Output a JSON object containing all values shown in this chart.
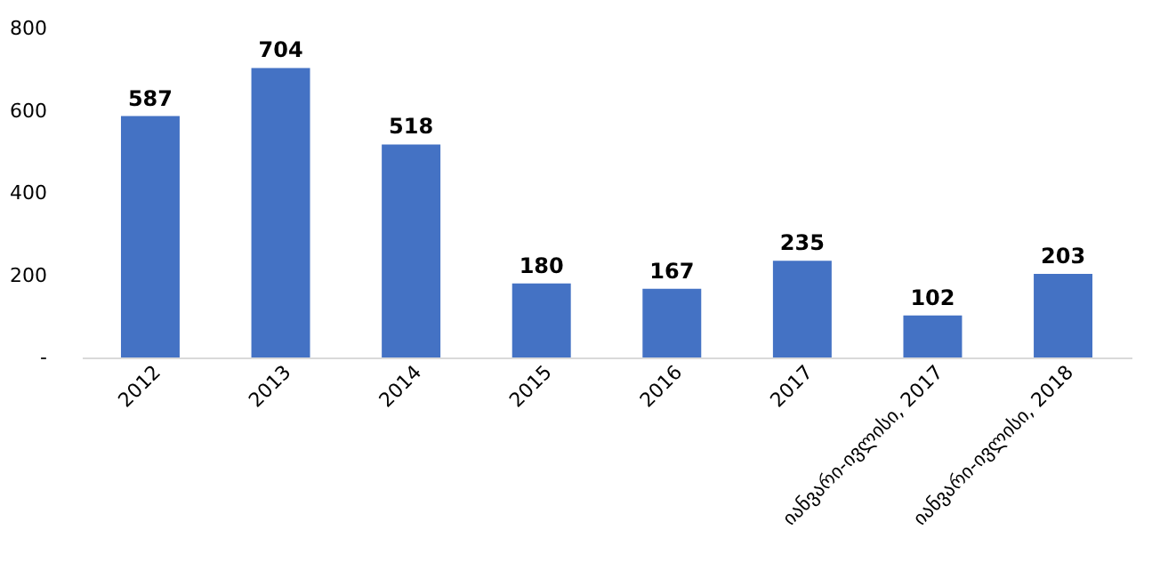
{
  "chart_data": {
    "type": "bar",
    "categories": [
      "2012",
      "2013",
      "2014",
      "2015",
      "2016",
      "2017",
      "იანვარი-ივლისი, 2017",
      "იანვარი-ივლისი, 2018"
    ],
    "values": [
      587,
      704,
      518,
      180,
      167,
      235,
      102,
      203
    ],
    "color": "#4472c4",
    "ylim": [
      0,
      800
    ],
    "yticks": [
      {
        "value": 0,
        "label": "-"
      },
      200,
      400,
      600,
      800
    ],
    "data_labels": true,
    "grid": false
  }
}
